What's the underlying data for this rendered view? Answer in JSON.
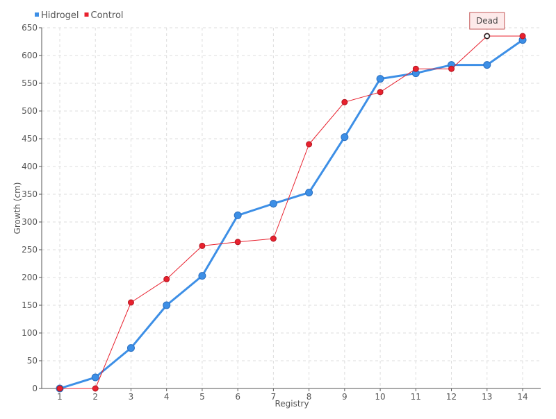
{
  "chart_data": {
    "type": "line",
    "x": [
      1,
      2,
      3,
      4,
      5,
      6,
      7,
      8,
      9,
      10,
      11,
      12,
      13,
      14
    ],
    "xlabel": "Registry",
    "ylabel": "Growth (cm)",
    "ylim": [
      0,
      650
    ],
    "ytick_step": 50,
    "grid": true,
    "legend_position": "top-left",
    "series": [
      {
        "name": "Hidrogel",
        "color": "#3d8fe6",
        "values": [
          0,
          20,
          73,
          150,
          203,
          312,
          333,
          353,
          453,
          558,
          568,
          583,
          583,
          628
        ]
      },
      {
        "name": "Control",
        "color": "#e8212e",
        "values": [
          0,
          0,
          155,
          197,
          257,
          264,
          270,
          440,
          516,
          534,
          576,
          576,
          635,
          635
        ]
      }
    ],
    "annotations": [
      {
        "text": "Dead",
        "series": "Control",
        "x": 13,
        "y": 635
      }
    ]
  }
}
